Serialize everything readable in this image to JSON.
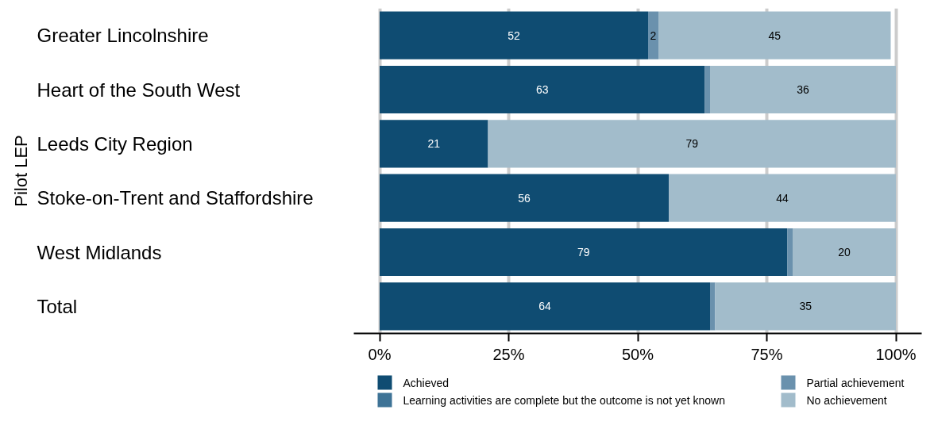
{
  "chart_data": {
    "type": "bar",
    "orientation": "horizontal",
    "stacked": true,
    "ylabel": "Pilot LEP",
    "categories": [
      "Greater Lincolnshire",
      "Heart of the South West",
      "Leeds City Region",
      "Stoke-on-Trent and Staffordshire",
      "West Midlands",
      "Total"
    ],
    "series": [
      {
        "name": "Achieved",
        "color": "#0f4c72",
        "values": [
          52,
          63,
          21,
          56,
          79,
          64
        ],
        "value_labels": [
          "52",
          "63",
          "21",
          "56",
          "79",
          "64"
        ]
      },
      {
        "name": "Learning activities are complete but the outcome is not yet known",
        "color": "#3e7396",
        "values": [
          0,
          0,
          0,
          0,
          0,
          0
        ],
        "value_labels": [
          null,
          null,
          null,
          null,
          null,
          null
        ]
      },
      {
        "name": "Partial achievement",
        "color": "#6a91ad",
        "values": [
          2,
          1,
          0,
          0,
          1,
          1
        ],
        "value_labels": [
          "2",
          null,
          null,
          null,
          null,
          null
        ]
      },
      {
        "name": "No achievement",
        "color": "#a2bccb",
        "values": [
          45,
          36,
          79,
          44,
          20,
          35
        ],
        "value_labels": [
          "45",
          "36",
          "79",
          "44",
          "20",
          "35"
        ]
      }
    ],
    "xlim": [
      -5,
      105
    ],
    "xticks": [
      {
        "value": 0,
        "label": "0%"
      },
      {
        "value": 25,
        "label": "25%"
      },
      {
        "value": 50,
        "label": "50%"
      },
      {
        "value": 75,
        "label": "75%"
      },
      {
        "value": 100,
        "label": "100%"
      }
    ],
    "grid": "x",
    "legend": "bottom"
  }
}
